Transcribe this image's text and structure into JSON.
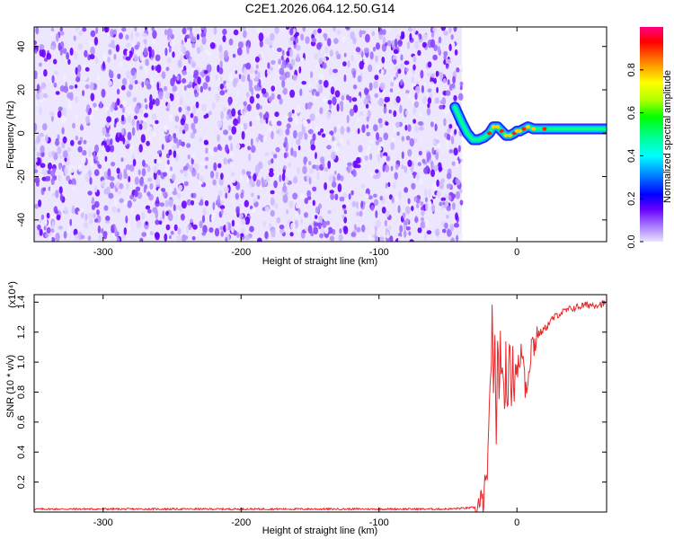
{
  "figure": {
    "title": "C2E1.2026.064.12.50.G14"
  },
  "colors": {
    "snr_line": "#e8282a",
    "colorbar_stops": [
      "#d8d8ff",
      "#a070ff",
      "#6a00ff",
      "#0000ff",
      "#0090ff",
      "#00ffff",
      "#00ff80",
      "#00ff00",
      "#b0ff00",
      "#ffff00",
      "#ff8000",
      "#ff0000",
      "#ff0080"
    ]
  },
  "chart_data": [
    {
      "type": "heatmap",
      "title": "C2E1.2026.064.12.50.G14",
      "xlabel": "Height of straight line (km)",
      "ylabel": "Frequency (Hz)",
      "xlim": [
        -350,
        65
      ],
      "ylim": [
        -50,
        49
      ],
      "xticks": [
        -300,
        -200,
        -100,
        0
      ],
      "yticks": [
        -40,
        -20,
        0,
        20,
        40
      ],
      "noise_region_x": [
        -350,
        -40
      ],
      "signal_track": {
        "x": [
          -45,
          -40,
          -36,
          -32,
          -28,
          -24,
          -20,
          -17,
          -14,
          -11,
          -8,
          -5,
          -2,
          0,
          2,
          5,
          8,
          12,
          20,
          30,
          45,
          65
        ],
        "y": [
          12,
          5,
          0,
          -3,
          -3,
          -2,
          0,
          3,
          3,
          1,
          -1,
          -1,
          0,
          1,
          1,
          2,
          3,
          2,
          2,
          2,
          2,
          2
        ]
      },
      "colorbar": {
        "label": "Normalized spectral amplitude",
        "range": [
          0.0,
          1.0
        ],
        "ticks": [
          0.0,
          0.2,
          0.4,
          0.6,
          0.8
        ]
      }
    },
    {
      "type": "line",
      "xlabel": "Height of straight line (km)",
      "ylabel": "SNR (10 * v/v)",
      "y_multiplier_label": "(x10⁴)",
      "xlim": [
        -350,
        65
      ],
      "ylim": [
        0,
        1.45
      ],
      "xticks": [
        -300,
        -200,
        -100,
        0
      ],
      "yticks": [
        0.2,
        0.4,
        0.6,
        0.8,
        1.0,
        1.2,
        1.4
      ],
      "series": [
        {
          "name": "SNR",
          "x": [
            -350,
            -300,
            -250,
            -200,
            -150,
            -100,
            -50,
            -30,
            -25,
            -22,
            -20,
            -19,
            -18,
            -17,
            -16,
            -15,
            -14,
            -13,
            -12,
            -11,
            -10,
            -9,
            -8,
            -7,
            -6,
            -5,
            -4,
            -3,
            -2,
            -1,
            0,
            2,
            4,
            6,
            8,
            10,
            12,
            15,
            20,
            25,
            30,
            40,
            50,
            65
          ],
          "values": [
            0.02,
            0.02,
            0.02,
            0.02,
            0.02,
            0.02,
            0.02,
            0.03,
            0.05,
            0.2,
            0.6,
            0.9,
            1.3,
            0.7,
            1.1,
            0.5,
            1.2,
            0.8,
            1.1,
            0.85,
            1.0,
            0.65,
            1.05,
            0.75,
            0.9,
            1.1,
            0.8,
            1.0,
            0.85,
            0.95,
            1.0,
            0.95,
            1.1,
            0.85,
            0.9,
            1.1,
            1.12,
            1.18,
            1.22,
            1.28,
            1.32,
            1.36,
            1.38,
            1.39
          ]
        }
      ]
    }
  ]
}
